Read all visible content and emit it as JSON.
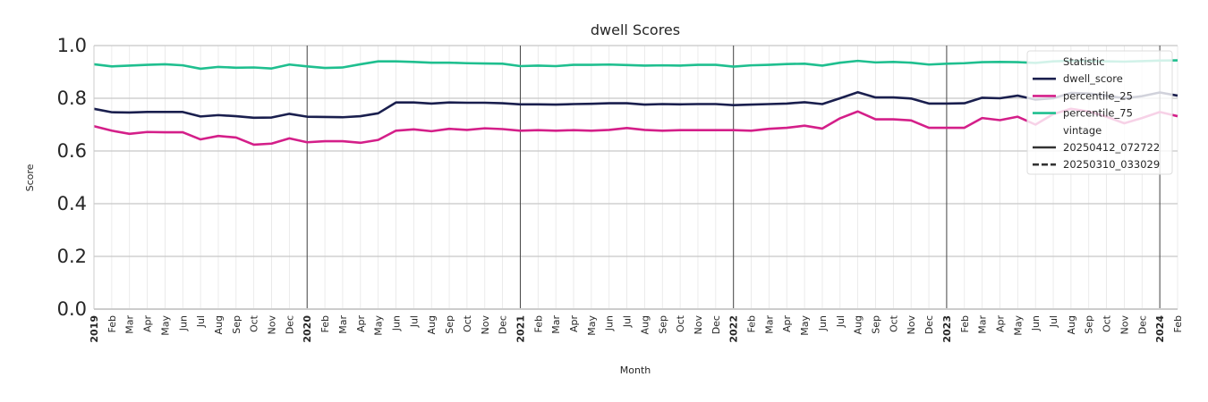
{
  "chart_data": {
    "type": "line",
    "title": "dwell Scores",
    "xlabel": "Month",
    "ylabel": "Score",
    "ylim": [
      0.0,
      1.0
    ],
    "yticks": [
      "0.0",
      "0.2",
      "0.4",
      "0.6",
      "0.8",
      "1.0"
    ],
    "grid": true,
    "legend_position": "top-right",
    "x_start": "2019-01",
    "x_end": "2024-02",
    "x_tick_labels": [
      "2019",
      "Feb",
      "Mar",
      "Apr",
      "May",
      "Jun",
      "Jul",
      "Aug",
      "Sep",
      "Oct",
      "Nov",
      "Dec",
      "2020",
      "Feb",
      "Mar",
      "Apr",
      "May",
      "Jun",
      "Jul",
      "Aug",
      "Sep",
      "Oct",
      "Nov",
      "Dec",
      "2021",
      "Feb",
      "Mar",
      "Apr",
      "May",
      "Jun",
      "Jul",
      "Aug",
      "Sep",
      "Oct",
      "Nov",
      "Dec",
      "2022",
      "Feb",
      "Mar",
      "Apr",
      "May",
      "Jun",
      "Jul",
      "Aug",
      "Sep",
      "Oct",
      "Nov",
      "Dec",
      "2023",
      "Feb",
      "Mar",
      "Apr",
      "May",
      "Jun",
      "Jul",
      "Aug",
      "Sep",
      "Oct",
      "Nov",
      "Dec",
      "2024",
      "Feb"
    ],
    "year_boundaries": [
      "2020-01",
      "2021-01",
      "2022-01",
      "2023-01",
      "2024-01"
    ],
    "legend": {
      "hue_title": "Statistic",
      "style_title": "vintage",
      "hue_entries": [
        {
          "label": "dwell_score",
          "color": "#1a1f4e"
        },
        {
          "label": "percentile_25",
          "color": "#d41f89"
        },
        {
          "label": "percentile_75",
          "color": "#1fbf8f"
        }
      ],
      "style_entries": [
        {
          "label": "20250412_072722",
          "dash": "solid"
        },
        {
          "label": "20250310_033029",
          "dash": "dashed"
        }
      ]
    },
    "series": [
      {
        "name": "dwell_score",
        "vintage": "20250412_072722",
        "color": "#1a1f4e",
        "values": [
          0.76,
          0.747,
          0.746,
          0.748,
          0.748,
          0.748,
          0.731,
          0.736,
          0.732,
          0.726,
          0.727,
          0.741,
          0.73,
          0.729,
          0.728,
          0.732,
          0.743,
          0.784,
          0.784,
          0.78,
          0.784,
          0.783,
          0.783,
          0.781,
          0.777,
          0.777,
          0.776,
          0.778,
          0.779,
          0.781,
          0.781,
          0.776,
          0.778,
          0.777,
          0.778,
          0.778,
          0.774,
          0.776,
          0.778,
          0.78,
          0.785,
          0.778,
          0.8,
          0.823,
          0.803,
          0.803,
          0.799,
          0.78,
          0.78,
          0.781,
          0.802,
          0.8,
          0.81,
          0.795,
          0.8,
          0.82,
          0.818,
          0.81,
          0.8,
          0.808,
          0.822,
          0.81
        ]
      },
      {
        "name": "percentile_25",
        "vintage": "20250412_072722",
        "color": "#d41f89",
        "values": [
          0.694,
          0.677,
          0.665,
          0.672,
          0.671,
          0.671,
          0.644,
          0.657,
          0.651,
          0.624,
          0.628,
          0.648,
          0.633,
          0.637,
          0.637,
          0.631,
          0.642,
          0.677,
          0.682,
          0.675,
          0.684,
          0.68,
          0.686,
          0.683,
          0.677,
          0.679,
          0.677,
          0.679,
          0.677,
          0.68,
          0.687,
          0.68,
          0.677,
          0.679,
          0.679,
          0.679,
          0.679,
          0.677,
          0.684,
          0.688,
          0.696,
          0.685,
          0.724,
          0.75,
          0.72,
          0.72,
          0.716,
          0.688,
          0.688,
          0.688,
          0.725,
          0.717,
          0.73,
          0.7,
          0.74,
          0.76,
          0.75,
          0.73,
          0.705,
          0.725,
          0.748,
          0.732
        ]
      },
      {
        "name": "percentile_75",
        "vintage": "20250412_072722",
        "color": "#1fbf8f",
        "values": [
          0.929,
          0.921,
          0.924,
          0.927,
          0.929,
          0.925,
          0.912,
          0.919,
          0.916,
          0.917,
          0.913,
          0.928,
          0.921,
          0.915,
          0.917,
          0.929,
          0.94,
          0.94,
          0.938,
          0.935,
          0.935,
          0.933,
          0.932,
          0.931,
          0.922,
          0.924,
          0.922,
          0.927,
          0.927,
          0.928,
          0.926,
          0.924,
          0.925,
          0.924,
          0.927,
          0.927,
          0.92,
          0.925,
          0.927,
          0.93,
          0.931,
          0.924,
          0.935,
          0.942,
          0.936,
          0.938,
          0.935,
          0.928,
          0.931,
          0.933,
          0.937,
          0.938,
          0.937,
          0.934,
          0.94,
          0.942,
          0.941,
          0.94,
          0.939,
          0.941,
          0.943,
          0.944
        ]
      }
    ]
  }
}
